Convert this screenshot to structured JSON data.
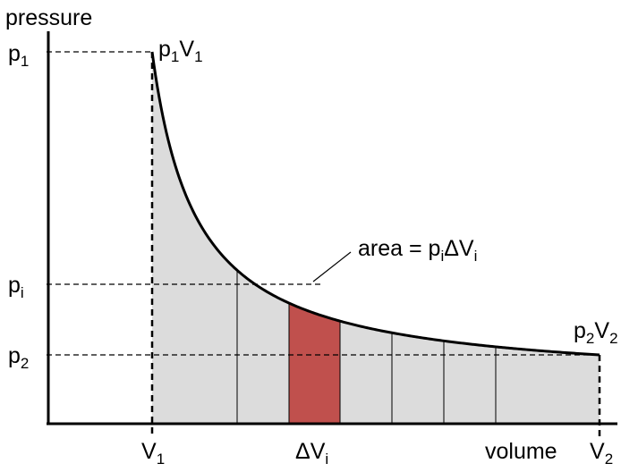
{
  "diagram": {
    "axis_labels": {
      "y": "pressure",
      "x": "volume"
    },
    "y_ticks": {
      "p1": {
        "base": "p",
        "sub": "1"
      },
      "pi": {
        "base": "p",
        "sub": "i"
      },
      "p2": {
        "base": "p",
        "sub": "2"
      }
    },
    "x_ticks": {
      "V1": {
        "base": "V",
        "sub": "1"
      },
      "dVi": {
        "base": "ΔV",
        "sub": "i"
      },
      "V2": {
        "base": "V",
        "sub": "2"
      }
    },
    "point_labels": {
      "start": {
        "a": "p",
        "a_sub": "1",
        "b": "V",
        "b_sub": "1"
      },
      "end": {
        "a": "p",
        "a_sub": "2",
        "b": "V",
        "b_sub": "2"
      }
    },
    "annotation": {
      "prefix": "area = p",
      "sub1": "i",
      "mid": "ΔV",
      "sub2": "i"
    },
    "colors": {
      "area_fill": "#dcdcdc",
      "highlight_strip": "#c0504d",
      "curve": "#000000"
    }
  }
}
